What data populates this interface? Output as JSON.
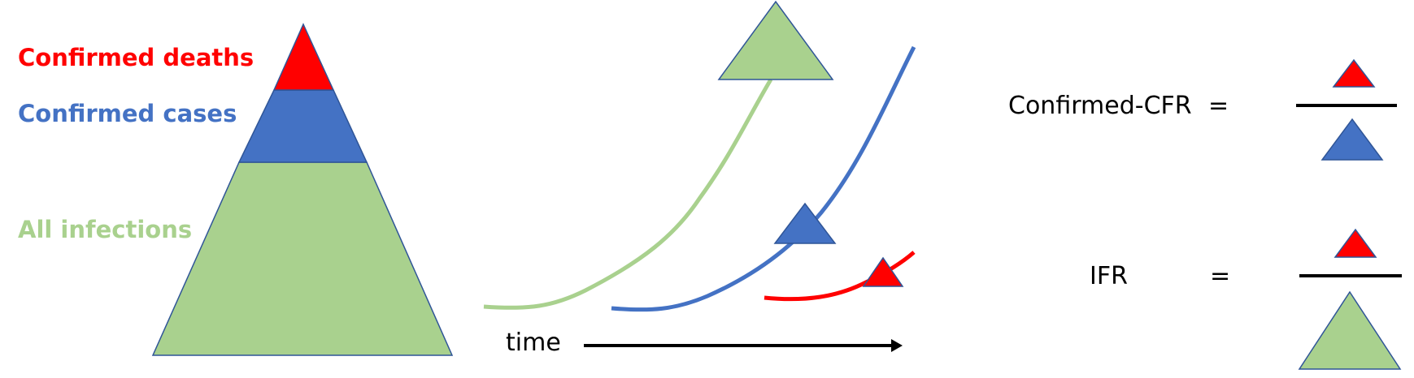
{
  "legend": {
    "deaths_label": "Confirmed deaths",
    "cases_label": "Confirmed cases",
    "infections_label": "All infections"
  },
  "timeline": {
    "axis_label": "time"
  },
  "formulas": {
    "cfr_label": "Confirmed-CFR",
    "cfr_equals": "=",
    "ifr_label": "IFR",
    "ifr_equals": "="
  },
  "colors": {
    "deaths": "#ff0000",
    "cases": "#4472c4",
    "infections": "#a9d18e",
    "infections_line": "#a9d18e",
    "outline": "#2f5597",
    "text": "#000000"
  }
}
